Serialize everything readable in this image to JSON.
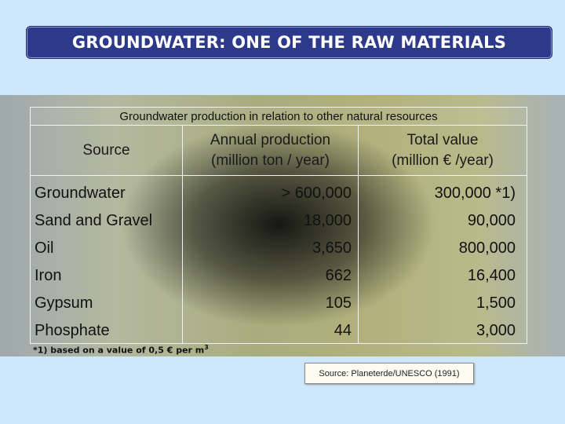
{
  "slide": {
    "title": "GROUNDWATER: ONE OF THE RAW MATERIALS"
  },
  "table": {
    "caption": "Groundwater production in relation to other natural resources",
    "headers": {
      "source": "Source",
      "production_line1": "Annual production",
      "production_line2": "(million ton / year)",
      "value_line1": "Total value",
      "value_line2": "(million € /year)"
    },
    "rows": [
      {
        "source": "Groundwater",
        "production": "> 600,000",
        "value": "300,000 *1)"
      },
      {
        "source": "Sand and Gravel",
        "production": "18,000",
        "value": "90,000"
      },
      {
        "source": "Oil",
        "production": "3,650",
        "value": "800,000"
      },
      {
        "source": "Iron",
        "production": "662",
        "value": "16,400"
      },
      {
        "source": "Gypsum",
        "production": "105",
        "value": "1,500"
      },
      {
        "source": "Phosphate",
        "production": "44",
        "value": "3,000"
      }
    ],
    "footnote": "*1) based on a value of 0,5 € per m",
    "footnote_sup": "3"
  },
  "source_note": "Source:  Planeterde/UNESCO (1991)"
}
